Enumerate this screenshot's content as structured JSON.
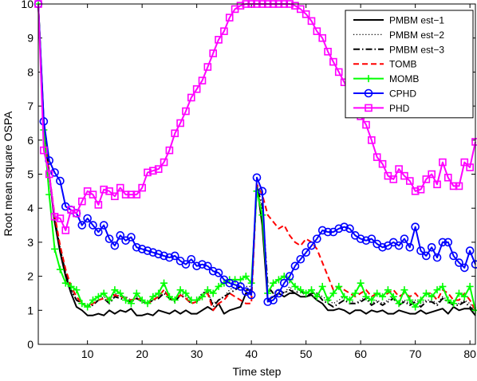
{
  "chart_data": {
    "type": "line",
    "title": "",
    "xlabel": "Time step",
    "ylabel": "Root mean square OSPA",
    "xlim": [
      1,
      81
    ],
    "ylim": [
      0,
      10
    ],
    "xticks": [
      10,
      20,
      30,
      40,
      50,
      60,
      70,
      80
    ],
    "yticks": [
      0,
      1,
      2,
      3,
      4,
      5,
      6,
      7,
      8,
      9,
      10
    ],
    "grid": false,
    "legend_position": "top-right",
    "series": [
      {
        "name": "PMBM est−1",
        "color": "#000000",
        "dash": "solid",
        "marker": "none",
        "x": [
          1,
          2,
          3,
          4,
          5,
          6,
          7,
          8,
          9,
          10,
          11,
          12,
          13,
          14,
          15,
          16,
          17,
          18,
          19,
          20,
          21,
          22,
          23,
          24,
          25,
          26,
          27,
          28,
          29,
          30,
          31,
          32,
          33,
          34,
          35,
          36,
          37,
          38,
          39,
          40,
          41,
          42,
          43,
          44,
          45,
          46,
          47,
          48,
          49,
          50,
          51,
          52,
          53,
          54,
          55,
          56,
          57,
          58,
          59,
          60,
          61,
          62,
          63,
          64,
          65,
          66,
          67,
          68,
          69,
          70,
          71,
          72,
          73,
          74,
          75,
          76,
          77,
          78,
          79,
          80,
          81
        ],
        "y": [
          10,
          6.5,
          5,
          3.6,
          2.7,
          2.0,
          1.5,
          1.1,
          1.0,
          0.85,
          0.85,
          0.9,
          0.85,
          1.0,
          0.9,
          1.0,
          0.95,
          1.05,
          0.85,
          0.85,
          0.9,
          0.85,
          1.0,
          0.95,
          0.9,
          1.0,
          0.9,
          1.0,
          0.9,
          0.9,
          1.0,
          1.1,
          1.0,
          1.2,
          0.9,
          1.0,
          1.05,
          1.1,
          1.5,
          1.5,
          4.7,
          3.5,
          1.3,
          1.4,
          1.5,
          1.4,
          1.5,
          1.5,
          1.4,
          1.4,
          1.45,
          1.3,
          1.2,
          1.0,
          1.0,
          1.05,
          1.0,
          0.9,
          1.0,
          1.0,
          0.9,
          1.0,
          0.95,
          1.0,
          0.9,
          0.9,
          1.0,
          0.95,
          0.9,
          0.9,
          1.0,
          0.9,
          0.95,
          1.0,
          1.05,
          0.9,
          1.1,
          1.0,
          1.05,
          1.05,
          0.85
        ]
      },
      {
        "name": "PMBM est−2",
        "color": "#000000",
        "dash": "dotted",
        "marker": "none",
        "x": [
          1,
          2,
          3,
          4,
          5,
          6,
          7,
          8,
          9,
          10,
          11,
          12,
          13,
          14,
          15,
          16,
          17,
          18,
          19,
          20,
          21,
          22,
          23,
          24,
          25,
          26,
          27,
          28,
          29,
          30,
          31,
          32,
          33,
          34,
          35,
          36,
          37,
          38,
          39,
          40,
          41,
          42,
          43,
          44,
          45,
          46,
          47,
          48,
          49,
          50,
          51,
          52,
          53,
          54,
          55,
          56,
          57,
          58,
          59,
          60,
          61,
          62,
          63,
          64,
          65,
          66,
          67,
          68,
          69,
          70,
          71,
          72,
          73,
          74,
          75,
          76,
          77,
          78,
          79,
          80,
          81
        ],
        "y": [
          10,
          6.4,
          5,
          3.7,
          2.8,
          2.1,
          1.6,
          1.3,
          1.2,
          1.1,
          1.2,
          1.3,
          1.4,
          1.3,
          1.5,
          1.4,
          1.4,
          1.3,
          1.4,
          1.3,
          1.2,
          1.3,
          1.4,
          1.6,
          1.4,
          1.3,
          1.5,
          1.4,
          1.3,
          1.3,
          1.4,
          1.5,
          1.2,
          1.3,
          1.4,
          1.6,
          1.7,
          1.8,
          1.7,
          1.7,
          4.6,
          3.9,
          1.6,
          1.5,
          1.6,
          1.5,
          1.7,
          1.5,
          1.6,
          1.4,
          1.5,
          1.5,
          1.4,
          1.3,
          1.2,
          1.3,
          1.4,
          1.3,
          1.2,
          1.3,
          1.4,
          1.2,
          1.3,
          1.2,
          1.3,
          1.4,
          1.2,
          1.3,
          1.2,
          1.3,
          1.2,
          1.3,
          1.3,
          1.2,
          1.4,
          1.3,
          1.2,
          1.2,
          1.3,
          1.2,
          1.0
        ]
      },
      {
        "name": "PMBM est−3",
        "color": "#000000",
        "dash": "dashdot",
        "marker": "none",
        "x": [
          1,
          2,
          3,
          4,
          5,
          6,
          7,
          8,
          9,
          10,
          11,
          12,
          13,
          14,
          15,
          16,
          17,
          18,
          19,
          20,
          21,
          22,
          23,
          24,
          25,
          26,
          27,
          28,
          29,
          30,
          31,
          32,
          33,
          34,
          35,
          36,
          37,
          38,
          39,
          40,
          41,
          42,
          43,
          44,
          45,
          46,
          47,
          48,
          49,
          50,
          51,
          52,
          53,
          54,
          55,
          56,
          57,
          58,
          59,
          60,
          61,
          62,
          63,
          64,
          65,
          66,
          67,
          68,
          69,
          70,
          71,
          72,
          73,
          74,
          75,
          76,
          77,
          78,
          79,
          80,
          81
        ],
        "y": [
          10,
          6.3,
          5,
          3.7,
          2.8,
          2.1,
          1.6,
          1.3,
          1.2,
          1.1,
          1.15,
          1.3,
          1.35,
          1.2,
          1.4,
          1.35,
          1.3,
          1.25,
          1.35,
          1.25,
          1.2,
          1.3,
          1.35,
          1.5,
          1.35,
          1.25,
          1.45,
          1.35,
          1.2,
          1.25,
          1.5,
          1.55,
          1.1,
          1.3,
          1.4,
          1.5,
          1.6,
          1.7,
          1.6,
          1.6,
          4.6,
          4.1,
          1.7,
          1.5,
          1.6,
          1.5,
          1.6,
          1.5,
          1.6,
          1.4,
          1.5,
          1.5,
          1.3,
          1.2,
          1.1,
          1.2,
          1.3,
          1.2,
          1.2,
          1.25,
          1.35,
          1.15,
          1.25,
          1.15,
          1.25,
          1.35,
          1.15,
          1.25,
          1.15,
          1.25,
          1.1,
          1.25,
          1.25,
          1.15,
          1.35,
          1.25,
          1.15,
          1.15,
          1.25,
          1.1,
          0.95
        ]
      },
      {
        "name": "TOMB",
        "color": "#ff0000",
        "dash": "dashed",
        "marker": "none",
        "x": [
          1,
          2,
          3,
          4,
          5,
          6,
          7,
          8,
          9,
          10,
          11,
          12,
          13,
          14,
          15,
          16,
          17,
          18,
          19,
          20,
          21,
          22,
          23,
          24,
          25,
          26,
          27,
          28,
          29,
          30,
          31,
          32,
          33,
          34,
          35,
          36,
          37,
          38,
          39,
          40,
          41,
          42,
          43,
          44,
          45,
          46,
          47,
          48,
          49,
          50,
          51,
          52,
          53,
          54,
          55,
          56,
          57,
          58,
          59,
          60,
          61,
          62,
          63,
          64,
          65,
          66,
          67,
          68,
          69,
          70,
          71,
          72,
          73,
          74,
          75,
          76,
          77,
          78,
          79,
          80,
          81
        ],
        "y": [
          10,
          6.3,
          5,
          3.8,
          2.9,
          2.2,
          1.7,
          1.4,
          1.2,
          1.1,
          1.2,
          1.3,
          1.35,
          1.3,
          1.45,
          1.4,
          1.35,
          1.3,
          1.35,
          1.3,
          1.2,
          1.3,
          1.4,
          1.6,
          1.35,
          1.3,
          1.45,
          1.35,
          1.2,
          1.25,
          1.4,
          1.5,
          1.0,
          1.2,
          1.3,
          1.5,
          1.4,
          1.3,
          1.2,
          1.2,
          4.7,
          4.4,
          3.8,
          3.6,
          3.4,
          3.5,
          3.2,
          3.0,
          2.9,
          3.1,
          3.0,
          2.8,
          2.4,
          2.0,
          1.6,
          1.7,
          1.6,
          1.5,
          1.4,
          1.5,
          1.6,
          1.4,
          1.5,
          1.4,
          1.5,
          1.6,
          1.4,
          1.5,
          1.4,
          1.5,
          1.3,
          1.5,
          1.5,
          1.3,
          1.6,
          1.5,
          1.3,
          1.3,
          1.5,
          1.3,
          1.0
        ]
      },
      {
        "name": "MOMB",
        "color": "#00ff00",
        "dash": "solid",
        "marker": "plus",
        "x": [
          1,
          2,
          3,
          4,
          5,
          6,
          7,
          8,
          9,
          10,
          11,
          12,
          13,
          14,
          15,
          16,
          17,
          18,
          19,
          20,
          21,
          22,
          23,
          24,
          25,
          26,
          27,
          28,
          29,
          30,
          31,
          32,
          33,
          34,
          35,
          36,
          37,
          38,
          39,
          40,
          41,
          42,
          43,
          44,
          45,
          46,
          47,
          48,
          49,
          50,
          51,
          52,
          53,
          54,
          55,
          56,
          57,
          58,
          59,
          60,
          61,
          62,
          63,
          64,
          65,
          66,
          67,
          68,
          69,
          70,
          71,
          72,
          73,
          74,
          75,
          76,
          77,
          78,
          79,
          80,
          81
        ],
        "y": [
          10,
          6.3,
          4.4,
          2.8,
          2.2,
          1.8,
          1.7,
          1.6,
          1.2,
          1.1,
          1.3,
          1.4,
          1.5,
          1.3,
          1.6,
          1.5,
          1.3,
          1.2,
          1.5,
          1.3,
          1.2,
          1.4,
          1.5,
          1.8,
          1.4,
          1.3,
          1.6,
          1.5,
          1.3,
          1.3,
          1.4,
          1.6,
          1.5,
          1.7,
          1.8,
          1.9,
          1.9,
          1.9,
          2.0,
          1.8,
          4.5,
          3.8,
          1.5,
          1.8,
          1.9,
          2.0,
          1.9,
          1.7,
          1.6,
          1.5,
          1.6,
          1.4,
          1.7,
          1.3,
          1.5,
          1.7,
          1.4,
          1.3,
          1.5,
          1.8,
          1.4,
          1.3,
          1.5,
          1.4,
          1.6,
          1.4,
          1.2,
          1.6,
          1.3,
          1.1,
          1.3,
          1.5,
          1.4,
          1.6,
          1.7,
          1.3,
          1.2,
          1.5,
          1.4,
          1.7,
          1.0
        ]
      },
      {
        "name": "CPHD",
        "color": "#0000ff",
        "dash": "solid",
        "marker": "circle",
        "x": [
          1,
          2,
          3,
          4,
          5,
          6,
          7,
          8,
          9,
          10,
          11,
          12,
          13,
          14,
          15,
          16,
          17,
          18,
          19,
          20,
          21,
          22,
          23,
          24,
          25,
          26,
          27,
          28,
          29,
          30,
          31,
          32,
          33,
          34,
          35,
          36,
          37,
          38,
          39,
          40,
          41,
          42,
          43,
          44,
          45,
          46,
          47,
          48,
          49,
          50,
          51,
          52,
          53,
          54,
          55,
          56,
          57,
          58,
          59,
          60,
          61,
          62,
          63,
          64,
          65,
          66,
          67,
          68,
          69,
          70,
          71,
          72,
          73,
          74,
          75,
          76,
          77,
          78,
          79,
          80,
          81
        ],
        "y": [
          10,
          6.55,
          5.4,
          5.05,
          4.8,
          4.05,
          3.95,
          3.85,
          3.5,
          3.7,
          3.5,
          3.3,
          3.5,
          3.1,
          2.9,
          3.2,
          3.05,
          3.15,
          2.85,
          2.8,
          2.75,
          2.7,
          2.65,
          2.6,
          2.55,
          2.6,
          2.45,
          2.35,
          2.5,
          2.3,
          2.35,
          2.3,
          2.15,
          2.1,
          1.9,
          1.8,
          1.75,
          1.7,
          1.55,
          1.45,
          4.9,
          4.5,
          1.25,
          1.3,
          1.5,
          1.8,
          2.0,
          2.3,
          2.5,
          2.7,
          2.9,
          3.1,
          3.35,
          3.3,
          3.3,
          3.4,
          3.45,
          3.4,
          3.2,
          3.1,
          3.05,
          3.1,
          2.95,
          2.85,
          2.9,
          3.0,
          2.9,
          3.1,
          2.85,
          3.45,
          2.75,
          2.6,
          2.85,
          2.55,
          3.0,
          3.0,
          2.6,
          2.4,
          2.25,
          2.75,
          2.35
        ]
      },
      {
        "name": "PHD",
        "color": "#ff00ff",
        "dash": "solid",
        "marker": "square",
        "x": [
          1,
          2,
          3,
          4,
          5,
          6,
          7,
          8,
          9,
          10,
          11,
          12,
          13,
          14,
          15,
          16,
          17,
          18,
          19,
          20,
          21,
          22,
          23,
          24,
          25,
          26,
          27,
          28,
          29,
          30,
          31,
          32,
          33,
          34,
          35,
          36,
          37,
          38,
          39,
          40,
          41,
          42,
          43,
          44,
          45,
          46,
          47,
          48,
          49,
          50,
          51,
          52,
          53,
          54,
          55,
          56,
          57,
          58,
          59,
          60,
          61,
          62,
          63,
          64,
          65,
          66,
          67,
          68,
          69,
          70,
          71,
          72,
          73,
          74,
          75,
          76,
          77,
          78,
          79,
          80,
          81
        ],
        "y": [
          10,
          5.7,
          5.0,
          3.75,
          3.7,
          3.35,
          3.95,
          3.85,
          4.2,
          4.5,
          4.4,
          4.1,
          4.55,
          4.5,
          4.35,
          4.6,
          4.4,
          4.4,
          4.4,
          4.6,
          5.05,
          5.1,
          5.15,
          5.35,
          5.7,
          6.2,
          6.5,
          6.85,
          7.25,
          7.5,
          7.75,
          8.15,
          8.55,
          8.95,
          9.2,
          9.6,
          9.85,
          9.95,
          10,
          10,
          10,
          10,
          10,
          10,
          10,
          10,
          10,
          9.95,
          9.85,
          9.7,
          9.5,
          9.2,
          9.0,
          8.6,
          8.3,
          8.0,
          7.7,
          7.4,
          7.0,
          6.7,
          6.45,
          6.0,
          5.5,
          5.3,
          4.95,
          4.85,
          5.15,
          4.95,
          4.8,
          4.5,
          4.55,
          4.85,
          5.0,
          4.7,
          5.35,
          4.9,
          4.65,
          4.65,
          5.35,
          5.2,
          5.95
        ]
      }
    ]
  }
}
